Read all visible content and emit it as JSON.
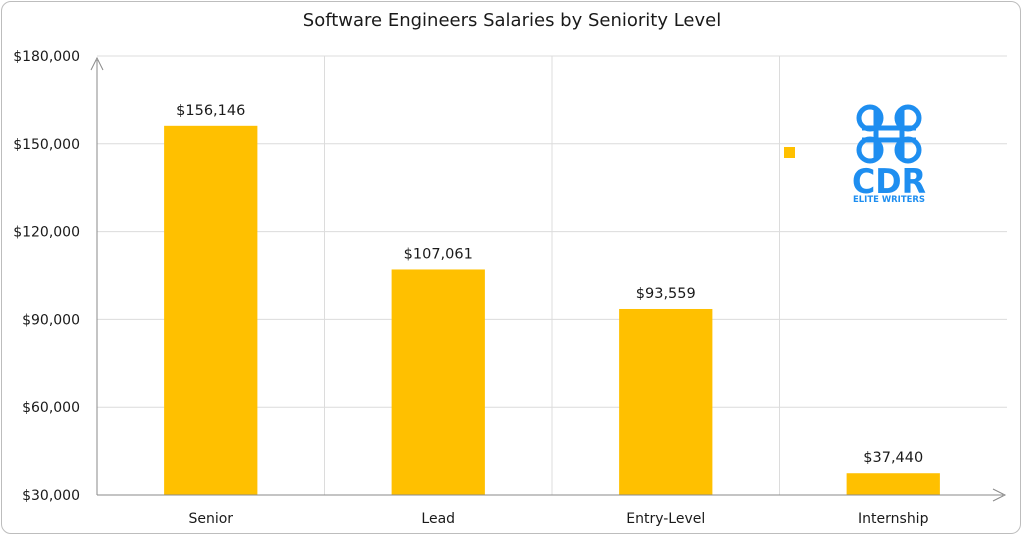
{
  "chart_data": {
    "type": "bar",
    "title": "Software Engineers Salaries by Seniority Level",
    "categories": [
      "Senior",
      "Lead",
      "Entry-Level",
      "Internship"
    ],
    "values": [
      156146,
      107061,
      93559,
      37440
    ],
    "data_labels": [
      "$156,146",
      "$107,061",
      "$93,559",
      "$37,440"
    ],
    "ylim": [
      30000,
      180000
    ],
    "yticks": [
      30000,
      60000,
      90000,
      120000,
      150000,
      180000
    ],
    "ytick_labels": [
      "$30,000",
      "$60,000",
      "$90,000",
      "$120,000",
      "$150,000",
      "$180,000"
    ],
    "xlabel": "",
    "ylabel": "",
    "grid": true,
    "bar_color": "#FFC000",
    "gridline_color": "#dcdcdc",
    "legend_marker_color": "#FFC000"
  },
  "logo": {
    "icon": "cdr-knot-logo-icon",
    "text": "CDR",
    "tagline": "ELITE WRITERS",
    "color": "#1e8ef0"
  }
}
